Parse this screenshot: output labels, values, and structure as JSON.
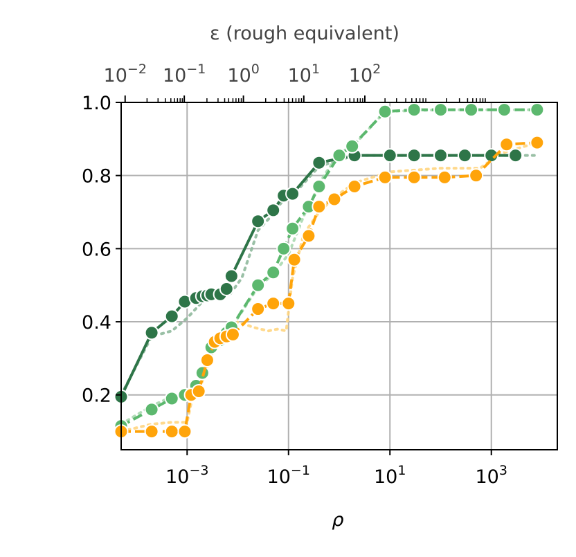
{
  "chart_data": {
    "type": "line",
    "xlabel": "ρ",
    "ylabel": "",
    "x_scale": "log",
    "xlim": [
      5e-05,
      20000
    ],
    "ylim": [
      0.05,
      1.0
    ],
    "grid": true,
    "xticks": [
      {
        "value": 0.001,
        "base": "10",
        "exp": "−3"
      },
      {
        "value": 0.1,
        "base": "10",
        "exp": "−1"
      },
      {
        "value": 10,
        "base": "10",
        "exp": "1"
      },
      {
        "value": 1000,
        "base": "10",
        "exp": "3"
      }
    ],
    "yticks": [
      {
        "value": 0.2,
        "label": "0.2"
      },
      {
        "value": 0.4,
        "label": "0.4"
      },
      {
        "value": 0.6,
        "label": "0.6"
      },
      {
        "value": 0.8,
        "label": "0.8"
      },
      {
        "value": 1.0,
        "label": "1.0"
      }
    ],
    "top_axis": {
      "label": "ε (rough equivalent)",
      "ticks": [
        {
          "rho": 5.99e-05,
          "base": "10",
          "exp": "−2"
        },
        {
          "rho": 0.000878,
          "base": "10",
          "exp": "−1"
        },
        {
          "rho": 0.0129,
          "base": "10",
          "exp": "0"
        },
        {
          "rho": 0.2,
          "base": "10",
          "exp": "1"
        },
        {
          "rho": 3.2,
          "base": "10",
          "exp": "2"
        }
      ],
      "minor_ticks": [
        0.000162,
        0.000267,
        0.000373,
        0.000478,
        0.000562,
        0.000645,
        0.000728,
        0.000803,
        0.00246,
        0.00407,
        0.0055,
        0.0066,
        0.008,
        0.0092,
        0.0104,
        0.0117,
        0.0354,
        0.058,
        0.082,
        0.1,
        0.12,
        0.14,
        0.16,
        0.18,
        0.56,
        0.94,
        1.32,
        1.62,
        1.95,
        2.3,
        2.6,
        2.9,
        8,
        13.5,
        20.5,
        27,
        33,
        39,
        45,
        51
      ],
      "minor_ticks_tail": [
        130,
        235,
        340,
        430,
        510,
        600,
        680,
        760
      ]
    },
    "series": [
      {
        "color": "#2e7548",
        "style": "solid",
        "x": [
          5e-05,
          0.0002,
          0.0005,
          0.0009,
          0.0015,
          0.002,
          0.0025,
          0.003,
          0.0045,
          0.006,
          0.0075,
          0.025,
          0.05,
          0.08,
          0.12,
          0.4,
          2,
          10,
          30,
          100,
          300,
          1000,
          3000
        ],
        "y": [
          0.195,
          0.37,
          0.415,
          0.455,
          0.465,
          0.47,
          0.472,
          0.475,
          0.475,
          0.49,
          0.525,
          0.675,
          0.705,
          0.745,
          0.75,
          0.835,
          0.855,
          0.855,
          0.855,
          0.855,
          0.855,
          0.855,
          0.855
        ]
      },
      {
        "color": "#5cb86e",
        "style": "dashed",
        "x": [
          5e-05,
          0.0002,
          0.0005,
          0.0009,
          0.0015,
          0.002,
          0.0025,
          0.003,
          0.0045,
          0.006,
          0.0075,
          0.025,
          0.05,
          0.08,
          0.12,
          0.25,
          0.4,
          1,
          1.8,
          8,
          30,
          100,
          400,
          1800,
          8000
        ],
        "y": [
          0.115,
          0.16,
          0.19,
          0.2,
          0.225,
          0.26,
          0.295,
          0.33,
          0.35,
          0.37,
          0.385,
          0.5,
          0.535,
          0.6,
          0.655,
          0.715,
          0.77,
          0.855,
          0.88,
          0.975,
          0.98,
          0.98,
          0.98,
          0.98,
          0.98
        ]
      },
      {
        "color": "#ffa40a",
        "style": "dashed",
        "x": [
          5e-05,
          0.0002,
          0.0005,
          0.0009,
          0.0012,
          0.0017,
          0.0025,
          0.0035,
          0.0045,
          0.006,
          0.008,
          0.025,
          0.05,
          0.1,
          0.13,
          0.25,
          0.4,
          0.8,
          2,
          8,
          30,
          120,
          500,
          2000,
          8000
        ],
        "y": [
          0.1,
          0.1,
          0.1,
          0.1,
          0.2,
          0.21,
          0.295,
          0.345,
          0.355,
          0.36,
          0.365,
          0.435,
          0.45,
          0.45,
          0.57,
          0.635,
          0.715,
          0.735,
          0.77,
          0.795,
          0.795,
          0.795,
          0.8,
          0.885,
          0.89
        ]
      }
    ],
    "reference_lines": [
      {
        "color": "#8fb99c",
        "style": "dotted",
        "x": [
          5e-05,
          0.0002,
          0.0005,
          0.001,
          0.002,
          0.003,
          0.005,
          0.007,
          0.012,
          0.025,
          0.05,
          0.08,
          0.12,
          0.4,
          2,
          10,
          100,
          1000,
          8000
        ],
        "y": [
          0.2,
          0.36,
          0.375,
          0.41,
          0.455,
          0.465,
          0.475,
          0.475,
          0.52,
          0.65,
          0.695,
          0.735,
          0.745,
          0.825,
          0.855,
          0.855,
          0.855,
          0.855,
          0.855
        ]
      },
      {
        "color": "#a9d8b0",
        "style": "dotted",
        "x": [
          5e-05,
          0.0002,
          0.0005,
          0.001,
          0.002,
          0.003,
          0.005,
          0.008,
          0.025,
          0.05,
          0.1,
          0.2,
          0.5,
          1,
          2,
          8,
          100,
          1000,
          8000
        ],
        "y": [
          0.12,
          0.17,
          0.195,
          0.205,
          0.24,
          0.32,
          0.36,
          0.39,
          0.495,
          0.53,
          0.585,
          0.69,
          0.8,
          0.86,
          0.885,
          0.975,
          0.98,
          0.98,
          0.98
        ]
      },
      {
        "color": "#ffd580",
        "style": "dotted",
        "x": [
          5e-05,
          0.0002,
          0.0005,
          0.001,
          0.0013,
          0.0018,
          0.003,
          0.005,
          0.01,
          0.02,
          0.04,
          0.06,
          0.09,
          0.12,
          0.2,
          0.4,
          0.8,
          2,
          10,
          100,
          600,
          1500,
          8000
        ],
        "y": [
          0.1,
          0.12,
          0.125,
          0.125,
          0.2,
          0.22,
          0.31,
          0.34,
          0.4,
          0.385,
          0.375,
          0.38,
          0.375,
          0.52,
          0.64,
          0.7,
          0.74,
          0.78,
          0.81,
          0.82,
          0.82,
          0.86,
          0.89
        ]
      }
    ]
  }
}
